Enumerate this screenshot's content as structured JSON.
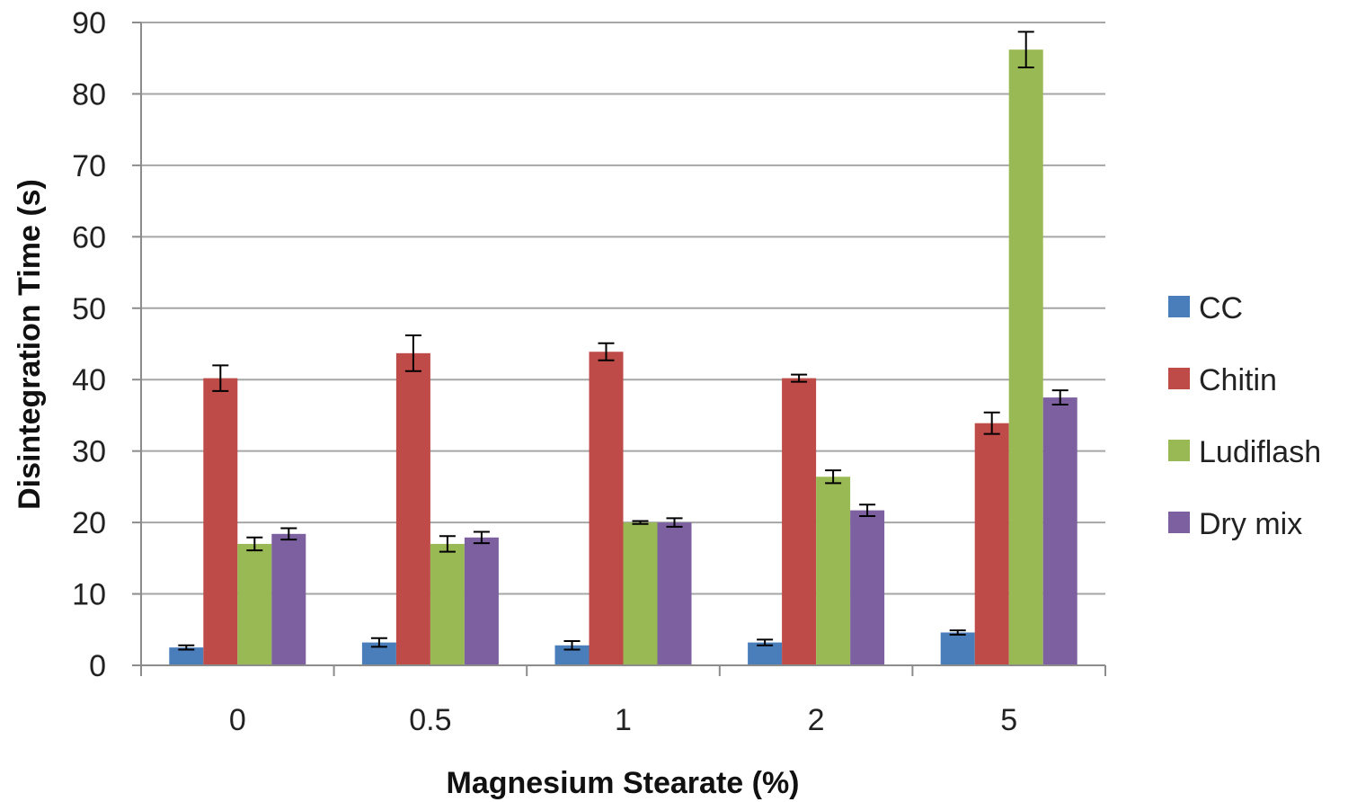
{
  "chart_data": {
    "type": "bar",
    "title": "",
    "xlabel": "Magnesium Stearate (%)",
    "ylabel": "Disintegration Time (s)",
    "categories": [
      "0",
      "0.5",
      "1",
      "2",
      "5"
    ],
    "ylim": [
      0,
      90
    ],
    "yticks": [
      0,
      10,
      20,
      30,
      40,
      50,
      60,
      70,
      80,
      90
    ],
    "grid": true,
    "legend_position": "right",
    "series": [
      {
        "name": "CC",
        "color": "#4a7ebb",
        "values": [
          2.5,
          3.2,
          2.8,
          3.2,
          4.6
        ],
        "errors": [
          0.3,
          0.6,
          0.6,
          0.4,
          0.3
        ]
      },
      {
        "name": "Chitin",
        "color": "#be4b48",
        "values": [
          40.2,
          43.7,
          43.9,
          40.2,
          33.9
        ],
        "errors": [
          1.8,
          2.5,
          1.2,
          0.5,
          1.5
        ]
      },
      {
        "name": "Ludiflash",
        "color": "#98b954",
        "values": [
          17.0,
          17.0,
          20.0,
          26.4,
          86.2
        ],
        "errors": [
          0.9,
          1.1,
          0.2,
          0.9,
          2.5
        ]
      },
      {
        "name": "Dry mix",
        "color": "#7d60a0",
        "values": [
          18.4,
          17.9,
          20.0,
          21.7,
          37.5
        ],
        "errors": [
          0.8,
          0.8,
          0.6,
          0.8,
          1.0
        ]
      }
    ]
  }
}
